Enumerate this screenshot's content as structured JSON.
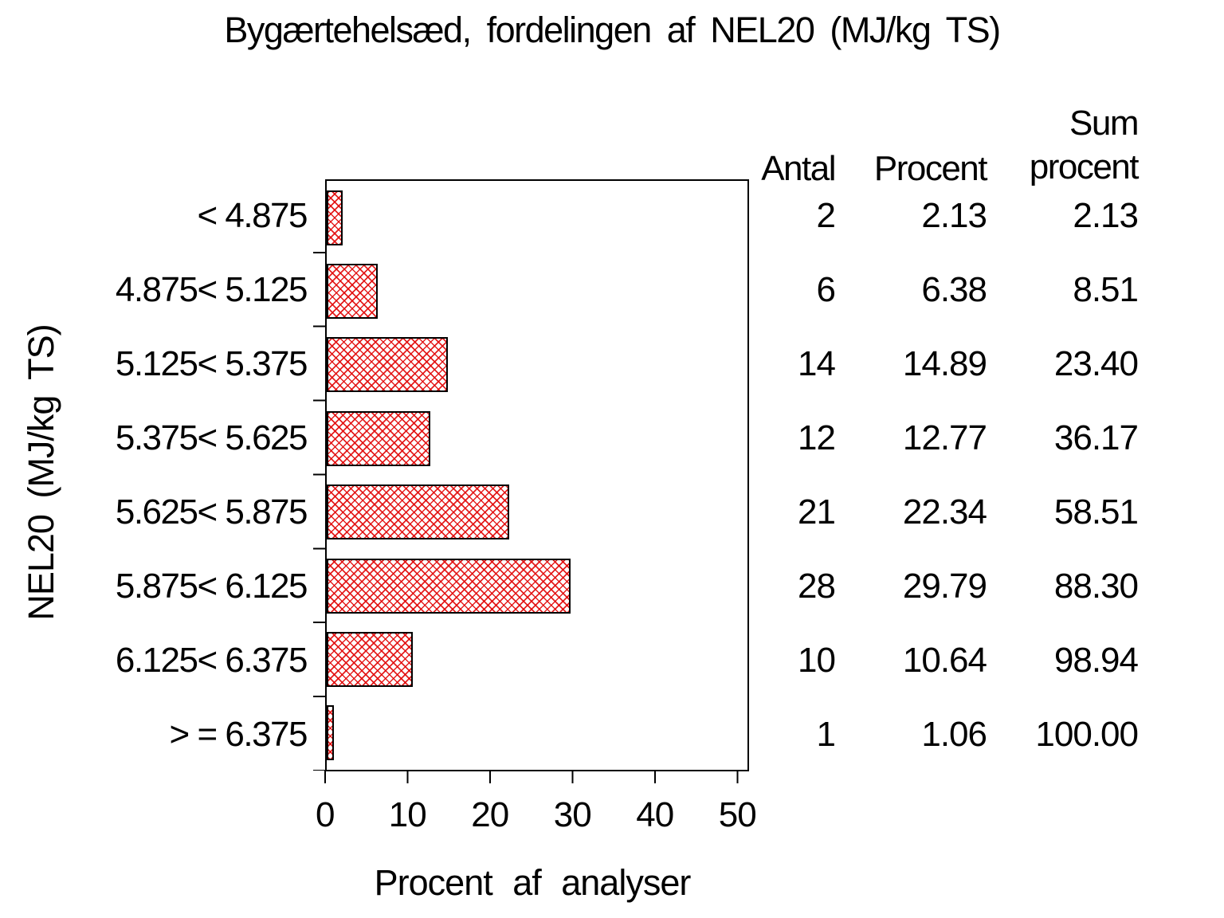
{
  "page": {
    "background": "#ffffff",
    "text_color": "#000000"
  },
  "chart_data": {
    "type": "bar",
    "orientation": "horizontal",
    "title": "Bygærtehelsæd, fordelingen af NEL20 (MJ/kg TS)",
    "ylabel": "NEL20 (MJ/kg TS)",
    "xlabel": "Procent af analyser",
    "xlim": [
      0,
      50
    ],
    "x_ticks": [
      "0",
      "10",
      "20",
      "30",
      "40",
      "50"
    ],
    "grid": false,
    "bar_fill_pattern": "red diagonal crosshatch",
    "bar_pattern_color": "#e20c0c",
    "bar_border_color": "#000000",
    "categories": [
      "< 4.875",
      "4.875< 5.125",
      "5.125< 5.375",
      "5.375< 5.625",
      "5.625< 5.875",
      "5.875< 6.125",
      "6.125< 6.375",
      "> = 6.375"
    ],
    "values": [
      2.13,
      6.38,
      14.89,
      12.77,
      22.34,
      29.79,
      10.64,
      1.06
    ],
    "table": {
      "headers": {
        "antal": "Antal",
        "procent": "Procent",
        "sum_line1": "Sum",
        "sum_line2": "procent"
      },
      "rows": [
        {
          "antal": "2",
          "procent": "2.13",
          "sum": "2.13"
        },
        {
          "antal": "6",
          "procent": "6.38",
          "sum": "8.51"
        },
        {
          "antal": "14",
          "procent": "14.89",
          "sum": "23.40"
        },
        {
          "antal": "12",
          "procent": "12.77",
          "sum": "36.17"
        },
        {
          "antal": "21",
          "procent": "22.34",
          "sum": "58.51"
        },
        {
          "antal": "28",
          "procent": "29.79",
          "sum": "88.30"
        },
        {
          "antal": "10",
          "procent": "10.64",
          "sum": "98.94"
        },
        {
          "antal": "1",
          "procent": "1.06",
          "sum": "100.00"
        }
      ]
    }
  }
}
